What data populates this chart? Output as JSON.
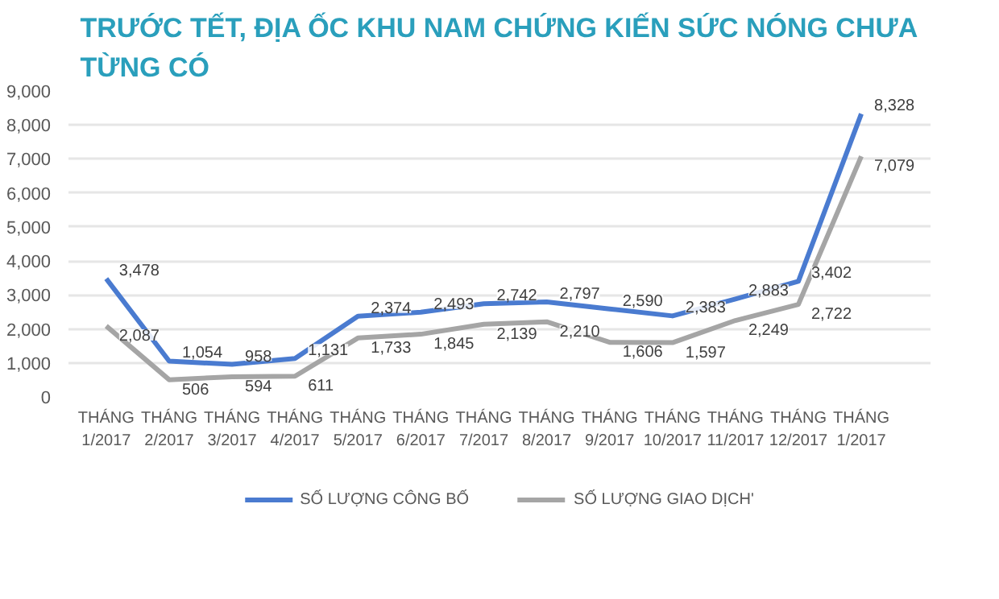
{
  "chart_data": {
    "type": "line",
    "title": "TRƯỚC TẾT, ĐỊA ỐC KHU NAM CHỨNG KIẾN SỨC NÓNG CHƯA TỪNG CÓ",
    "categories": [
      "THÁNG 1/2017",
      "THÁNG 2/2017",
      "THÁNG 3/2017",
      "THÁNG 4/2017",
      "THÁNG 5/2017",
      "THÁNG 6/2017",
      "THÁNG 7/2017",
      "THÁNG 8/2017",
      "THÁNG 9/2017",
      "THÁNG 10/2017",
      "THÁNG 11/2017",
      "THÁNG 12/2017",
      "THÁNG 1/2017"
    ],
    "series": [
      {
        "name": "SỐ LƯỢNG CÔNG BỐ",
        "color": "#4a7bd0",
        "values": [
          3478,
          1054,
          958,
          1131,
          2374,
          2493,
          2742,
          2797,
          2590,
          2383,
          2883,
          3402,
          8328
        ],
        "value_labels": [
          "3,478",
          "1,054",
          "958",
          "1,131",
          "2,374",
          "2,493",
          "2,742",
          "2,797",
          "2,590",
          "2,383",
          "2,883",
          "3,402",
          "8,328"
        ]
      },
      {
        "name": "SỐ LƯỢNG GIAO DỊCH'",
        "color": "#a5a5a5",
        "values": [
          2087,
          506,
          594,
          611,
          1733,
          1845,
          2139,
          2210,
          1606,
          1597,
          2249,
          2722,
          7079
        ],
        "value_labels": [
          "2,087",
          "506",
          "594",
          "611",
          "1,733",
          "1,845",
          "2,139",
          "2,210",
          "1,606",
          "1,597",
          "2,249",
          "2,722",
          "7,079"
        ]
      }
    ],
    "ylim": [
      0,
      9000
    ],
    "yticks": [
      {
        "value": 0,
        "label": "0"
      },
      {
        "value": 1000,
        "label": "1,000"
      },
      {
        "value": 2000,
        "label": "2,000"
      },
      {
        "value": 3000,
        "label": "3,000"
      },
      {
        "value": 4000,
        "label": "4,000"
      },
      {
        "value": 5000,
        "label": "5,000"
      },
      {
        "value": 6000,
        "label": "6,000"
      },
      {
        "value": 7000,
        "label": "7,000"
      },
      {
        "value": 8000,
        "label": "8,000"
      },
      {
        "value": 9000,
        "label": "9,000"
      }
    ],
    "grid": "y",
    "legend": "bottom",
    "marker": "none",
    "line_style": "solid"
  }
}
